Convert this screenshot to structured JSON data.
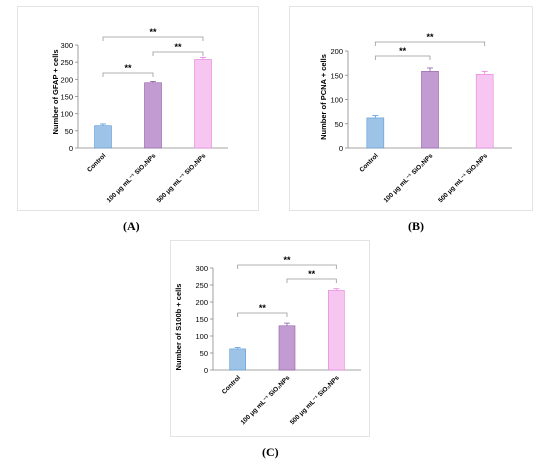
{
  "figure": {
    "panel_labels": [
      "(A)",
      "(B)",
      "(C)"
    ]
  },
  "chart_data": [
    {
      "type": "bar",
      "ylabel": "Number of GFAP + cells",
      "ylim": [
        0,
        300
      ],
      "yticks": [
        0,
        50,
        100,
        150,
        200,
        250,
        300
      ],
      "categories": [
        "Control",
        "100 μg mL⁻¹ SiO₂NPs",
        "500 μg mL⁻¹ SiO₂NPs"
      ],
      "values": [
        65,
        190,
        258
      ],
      "errors": [
        5,
        4,
        6
      ],
      "colors": [
        "#9dc3e6",
        "#c39bd3",
        "#f7c6f0"
      ],
      "edge_colors": [
        "#5b9bd5",
        "#8e5ea2",
        "#e57fe0"
      ],
      "significance": [
        {
          "from": 0,
          "to": 1,
          "label": "**"
        },
        {
          "from": 0,
          "to": 2,
          "label": "**"
        },
        {
          "from": 1,
          "to": 2,
          "label": "**"
        }
      ]
    },
    {
      "type": "bar",
      "ylabel": "Number of PCNA + cells",
      "ylim": [
        0,
        200
      ],
      "yticks": [
        0,
        50,
        100,
        150,
        200
      ],
      "categories": [
        "Control",
        "100 μg mL⁻¹ SiO₂NPs",
        "500 μg mL⁻¹ SiO₂NPs"
      ],
      "values": [
        62,
        158,
        152
      ],
      "errors": [
        5,
        7,
        6
      ],
      "colors": [
        "#9dc3e6",
        "#c39bd3",
        "#f7c6f0"
      ],
      "edge_colors": [
        "#5b9bd5",
        "#8e5ea2",
        "#e57fe0"
      ],
      "significance": [
        {
          "from": 0,
          "to": 1,
          "label": "**"
        },
        {
          "from": 0,
          "to": 2,
          "label": "**"
        }
      ]
    },
    {
      "type": "bar",
      "ylabel": "Number of S100b + cells",
      "ylim": [
        0,
        300
      ],
      "yticks": [
        0,
        50,
        100,
        150,
        200,
        250,
        300
      ],
      "categories": [
        "Control",
        "100 μg mL⁻¹ SiO₂NPs",
        "500 μg mL⁻¹ SiO₂NPs"
      ],
      "values": [
        62,
        130,
        234
      ],
      "errors": [
        4,
        8,
        5
      ],
      "colors": [
        "#9dc3e6",
        "#c39bd3",
        "#f7c6f0"
      ],
      "edge_colors": [
        "#5b9bd5",
        "#8e5ea2",
        "#e57fe0"
      ],
      "significance": [
        {
          "from": 0,
          "to": 1,
          "label": "**"
        },
        {
          "from": 0,
          "to": 2,
          "label": "**"
        },
        {
          "from": 1,
          "to": 2,
          "label": "**"
        }
      ]
    }
  ]
}
